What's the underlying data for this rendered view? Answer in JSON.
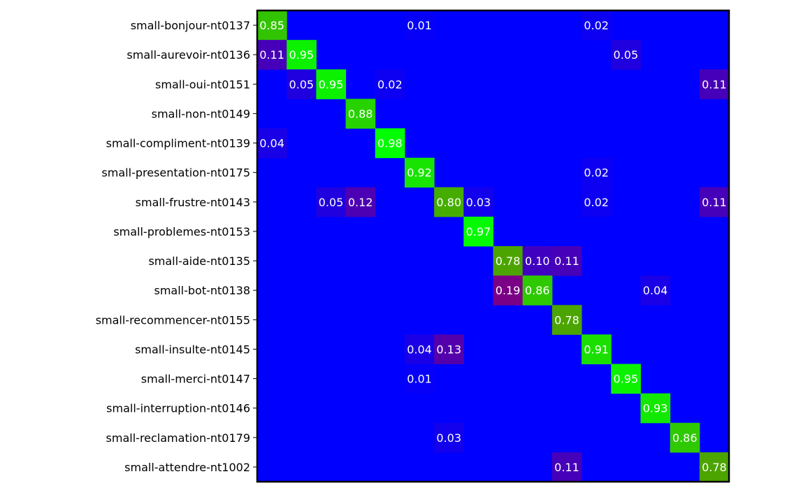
{
  "chart_data": {
    "type": "heatmap",
    "title": "",
    "xlabel": "",
    "ylabel": "",
    "x_tick_labels": [],
    "rows": [
      "small-bonjour-nt0137",
      "small-aurevoir-nt0136",
      "small-oui-nt0151",
      "small-non-nt0149",
      "small-compliment-nt0139",
      "small-presentation-nt0175",
      "small-frustre-nt0143",
      "small-problemes-nt0153",
      "small-aide-nt0135",
      "small-bot-nt0138",
      "small-recommencer-nt0155",
      "small-insulte-nt0145",
      "small-merci-nt0147",
      "small-interruption-nt0146",
      "small-reclamation-nt0179",
      "small-attendre-nt1002"
    ],
    "n_columns": 16,
    "cells": [
      {
        "row": 0,
        "col": 0,
        "value": "0.85"
      },
      {
        "row": 0,
        "col": 5,
        "value": "0.01"
      },
      {
        "row": 0,
        "col": 11,
        "value": "0.02"
      },
      {
        "row": 1,
        "col": 0,
        "value": "0.11"
      },
      {
        "row": 1,
        "col": 1,
        "value": "0.95"
      },
      {
        "row": 1,
        "col": 12,
        "value": "0.05"
      },
      {
        "row": 2,
        "col": 1,
        "value": "0.05"
      },
      {
        "row": 2,
        "col": 2,
        "value": "0.95"
      },
      {
        "row": 2,
        "col": 4,
        "value": "0.02"
      },
      {
        "row": 2,
        "col": 15,
        "value": "0.11"
      },
      {
        "row": 3,
        "col": 3,
        "value": "0.88"
      },
      {
        "row": 4,
        "col": 0,
        "value": "0.04"
      },
      {
        "row": 4,
        "col": 4,
        "value": "0.98"
      },
      {
        "row": 5,
        "col": 5,
        "value": "0.92"
      },
      {
        "row": 5,
        "col": 11,
        "value": "0.02"
      },
      {
        "row": 6,
        "col": 2,
        "value": "0.05"
      },
      {
        "row": 6,
        "col": 3,
        "value": "0.12"
      },
      {
        "row": 6,
        "col": 6,
        "value": "0.80"
      },
      {
        "row": 6,
        "col": 7,
        "value": "0.03"
      },
      {
        "row": 6,
        "col": 11,
        "value": "0.02"
      },
      {
        "row": 6,
        "col": 15,
        "value": "0.11"
      },
      {
        "row": 7,
        "col": 7,
        "value": "0.97"
      },
      {
        "row": 8,
        "col": 8,
        "value": "0.78"
      },
      {
        "row": 8,
        "col": 9,
        "value": "0.10"
      },
      {
        "row": 8,
        "col": 10,
        "value": "0.11"
      },
      {
        "row": 9,
        "col": 8,
        "value": "0.19"
      },
      {
        "row": 9,
        "col": 9,
        "value": "0.86"
      },
      {
        "row": 9,
        "col": 13,
        "value": "0.04"
      },
      {
        "row": 10,
        "col": 10,
        "value": "0.78"
      },
      {
        "row": 11,
        "col": 5,
        "value": "0.04"
      },
      {
        "row": 11,
        "col": 6,
        "value": "0.13"
      },
      {
        "row": 11,
        "col": 11,
        "value": "0.91"
      },
      {
        "row": 12,
        "col": 5,
        "value": "0.01"
      },
      {
        "row": 12,
        "col": 12,
        "value": "0.95"
      },
      {
        "row": 13,
        "col": 13,
        "value": "0.93"
      },
      {
        "row": 14,
        "col": 6,
        "value": "0.03"
      },
      {
        "row": 14,
        "col": 14,
        "value": "0.86"
      },
      {
        "row": 15,
        "col": 10,
        "value": "0.11"
      },
      {
        "row": 15,
        "col": 15,
        "value": "0.78"
      }
    ],
    "color_scale": {
      "low": "#0000ff",
      "off_diagonal_high": "#800080",
      "diagonal_high": "#00ff00"
    },
    "grid": false,
    "legend": "none"
  }
}
